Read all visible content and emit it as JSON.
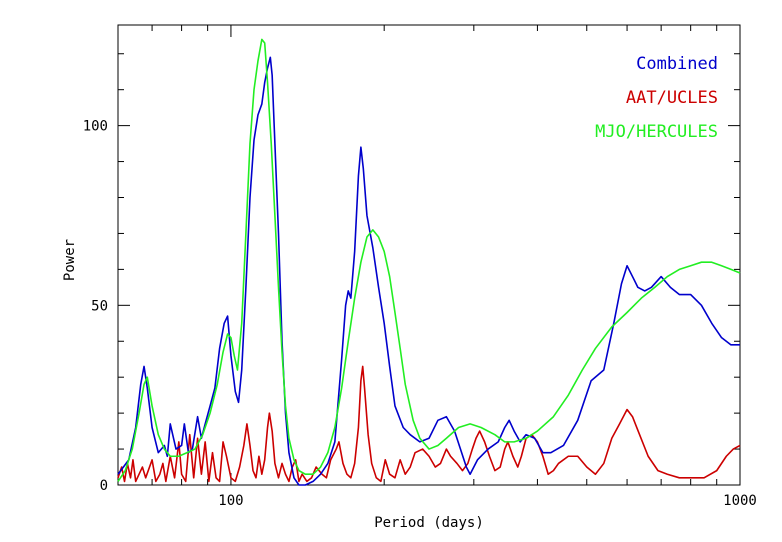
{
  "chart_data": {
    "type": "line",
    "xlabel": "Period (days)",
    "ylabel": "Power",
    "xscale": "log",
    "xlim": [
      60,
      1000
    ],
    "ylim": [
      0,
      128
    ],
    "x_tick_labels": [
      "100",
      "1000"
    ],
    "y_tick_labels": [
      "0",
      "50",
      "100"
    ],
    "legend_position": "top-right",
    "grid": false,
    "series": [
      {
        "name": "Combined",
        "color": "#0000cc",
        "points": [
          [
            60,
            3
          ],
          [
            63,
            7
          ],
          [
            65,
            16
          ],
          [
            66.5,
            28
          ],
          [
            67.5,
            33
          ],
          [
            68.5,
            27
          ],
          [
            70,
            16
          ],
          [
            72,
            9
          ],
          [
            74,
            11
          ],
          [
            75,
            8
          ],
          [
            76,
            17
          ],
          [
            78,
            10
          ],
          [
            80,
            11
          ],
          [
            81,
            17
          ],
          [
            82.5,
            9
          ],
          [
            84,
            10
          ],
          [
            86,
            19
          ],
          [
            87.5,
            13
          ],
          [
            89,
            17
          ],
          [
            91,
            22
          ],
          [
            93,
            27
          ],
          [
            95,
            38
          ],
          [
            97,
            45
          ],
          [
            98.5,
            47
          ],
          [
            100,
            36
          ],
          [
            102,
            26
          ],
          [
            103.5,
            23
          ],
          [
            105,
            32
          ],
          [
            107,
            55
          ],
          [
            109,
            80
          ],
          [
            111,
            96
          ],
          [
            113,
            103
          ],
          [
            115,
            106
          ],
          [
            116.5,
            112
          ],
          [
            118,
            116
          ],
          [
            119.5,
            119
          ],
          [
            120.5,
            114
          ],
          [
            122,
            95
          ],
          [
            124,
            70
          ],
          [
            126,
            40
          ],
          [
            128,
            20
          ],
          [
            130,
            9
          ],
          [
            133,
            2
          ],
          [
            136,
            0
          ],
          [
            140,
            0
          ],
          [
            145,
            1
          ],
          [
            150,
            3
          ],
          [
            155,
            6
          ],
          [
            160,
            12
          ],
          [
            165,
            35
          ],
          [
            168,
            50
          ],
          [
            170,
            54
          ],
          [
            172,
            52
          ],
          [
            175,
            65
          ],
          [
            178,
            86
          ],
          [
            180,
            94
          ],
          [
            182,
            88
          ],
          [
            185,
            75
          ],
          [
            190,
            66
          ],
          [
            195,
            55
          ],
          [
            200,
            45
          ],
          [
            205,
            33
          ],
          [
            210,
            22
          ],
          [
            218,
            16
          ],
          [
            225,
            14
          ],
          [
            235,
            12
          ],
          [
            245,
            13
          ],
          [
            255,
            18
          ],
          [
            265,
            19
          ],
          [
            275,
            15
          ],
          [
            290,
            5
          ],
          [
            295,
            3
          ],
          [
            305,
            7
          ],
          [
            320,
            10
          ],
          [
            335,
            12
          ],
          [
            345,
            16
          ],
          [
            352,
            18
          ],
          [
            360,
            15
          ],
          [
            370,
            12
          ],
          [
            380,
            14
          ],
          [
            395,
            13
          ],
          [
            410,
            9
          ],
          [
            425,
            9
          ],
          [
            450,
            11
          ],
          [
            480,
            18
          ],
          [
            510,
            29
          ],
          [
            540,
            32
          ],
          [
            565,
            45
          ],
          [
            585,
            56
          ],
          [
            600,
            61
          ],
          [
            615,
            58
          ],
          [
            630,
            55
          ],
          [
            650,
            54
          ],
          [
            670,
            55
          ],
          [
            700,
            58
          ],
          [
            730,
            55
          ],
          [
            760,
            53
          ],
          [
            800,
            53
          ],
          [
            840,
            50
          ],
          [
            880,
            45
          ],
          [
            920,
            41
          ],
          [
            960,
            39
          ],
          [
            1000,
            39
          ]
        ]
      },
      {
        "name": "AAT/UCLES",
        "color": "#cc0000",
        "points": [
          [
            60,
            2
          ],
          [
            61,
            5
          ],
          [
            61.8,
            1
          ],
          [
            62.6,
            6
          ],
          [
            63.5,
            2
          ],
          [
            64.2,
            7
          ],
          [
            65,
            1
          ],
          [
            66,
            3
          ],
          [
            67,
            5
          ],
          [
            68,
            2
          ],
          [
            70,
            7
          ],
          [
            71.2,
            1
          ],
          [
            72.5,
            3
          ],
          [
            73.5,
            6
          ],
          [
            74.5,
            1
          ],
          [
            76,
            8
          ],
          [
            77.5,
            2
          ],
          [
            79,
            12
          ],
          [
            80,
            3
          ],
          [
            81.5,
            1
          ],
          [
            83,
            14
          ],
          [
            84.5,
            2
          ],
          [
            86,
            13
          ],
          [
            87.5,
            3
          ],
          [
            89,
            12
          ],
          [
            90.5,
            1
          ],
          [
            92,
            9
          ],
          [
            93.5,
            2
          ],
          [
            95,
            1
          ],
          [
            96.5,
            12
          ],
          [
            98,
            8
          ],
          [
            100,
            2
          ],
          [
            102,
            1
          ],
          [
            104,
            5
          ],
          [
            106,
            11
          ],
          [
            107.5,
            17
          ],
          [
            109,
            11
          ],
          [
            110.5,
            4
          ],
          [
            112,
            2
          ],
          [
            113.5,
            8
          ],
          [
            115,
            3
          ],
          [
            116.5,
            7
          ],
          [
            118,
            16
          ],
          [
            119,
            20
          ],
          [
            120.5,
            15
          ],
          [
            122,
            6
          ],
          [
            124,
            2
          ],
          [
            126,
            6
          ],
          [
            128,
            3
          ],
          [
            130,
            1
          ],
          [
            132,
            5
          ],
          [
            134,
            7
          ],
          [
            136,
            1
          ],
          [
            138,
            3
          ],
          [
            141,
            1
          ],
          [
            144,
            2
          ],
          [
            147,
            5
          ],
          [
            151,
            3
          ],
          [
            154,
            2
          ],
          [
            157,
            7
          ],
          [
            161,
            10
          ],
          [
            163,
            12
          ],
          [
            166,
            6
          ],
          [
            169,
            3
          ],
          [
            172,
            2
          ],
          [
            175,
            6
          ],
          [
            178,
            16
          ],
          [
            180,
            29
          ],
          [
            181.5,
            33
          ],
          [
            183,
            27
          ],
          [
            186,
            14
          ],
          [
            189,
            6
          ],
          [
            193,
            2
          ],
          [
            197,
            1
          ],
          [
            201,
            7
          ],
          [
            205,
            3
          ],
          [
            210,
            2
          ],
          [
            215,
            7
          ],
          [
            220,
            3
          ],
          [
            225,
            5
          ],
          [
            230,
            9
          ],
          [
            238,
            10
          ],
          [
            245,
            8
          ],
          [
            252,
            5
          ],
          [
            258,
            6
          ],
          [
            265,
            10
          ],
          [
            270,
            8
          ],
          [
            278,
            6
          ],
          [
            285,
            4
          ],
          [
            292,
            6
          ],
          [
            298,
            10
          ],
          [
            303,
            13
          ],
          [
            308,
            15
          ],
          [
            315,
            12
          ],
          [
            322,
            8
          ],
          [
            330,
            4
          ],
          [
            338,
            5
          ],
          [
            345,
            10
          ],
          [
            350,
            12
          ],
          [
            358,
            8
          ],
          [
            366,
            5
          ],
          [
            372,
            8
          ],
          [
            380,
            13
          ],
          [
            390,
            14
          ],
          [
            400,
            12
          ],
          [
            410,
            8
          ],
          [
            420,
            3
          ],
          [
            430,
            4
          ],
          [
            440,
            6
          ],
          [
            460,
            8
          ],
          [
            480,
            8
          ],
          [
            500,
            5
          ],
          [
            520,
            3
          ],
          [
            540,
            6
          ],
          [
            560,
            13
          ],
          [
            580,
            17
          ],
          [
            600,
            21
          ],
          [
            615,
            19
          ],
          [
            635,
            14
          ],
          [
            660,
            8
          ],
          [
            690,
            4
          ],
          [
            720,
            3
          ],
          [
            760,
            2
          ],
          [
            800,
            2
          ],
          [
            850,
            2
          ],
          [
            900,
            4
          ],
          [
            940,
            8
          ],
          [
            970,
            10
          ],
          [
            1000,
            11
          ]
        ]
      },
      {
        "name": "MJO/HERCULES",
        "color": "#22ee22",
        "points": [
          [
            60,
            1
          ],
          [
            62,
            4
          ],
          [
            64,
            10
          ],
          [
            66,
            20
          ],
          [
            67.5,
            28
          ],
          [
            68.5,
            30
          ],
          [
            70,
            22
          ],
          [
            72,
            14
          ],
          [
            74,
            10
          ],
          [
            76,
            8
          ],
          [
            79,
            8
          ],
          [
            82,
            9
          ],
          [
            85,
            10
          ],
          [
            88,
            14
          ],
          [
            91,
            20
          ],
          [
            94,
            28
          ],
          [
            96.5,
            37
          ],
          [
            98.5,
            42
          ],
          [
            100,
            41
          ],
          [
            101.5,
            36
          ],
          [
            103,
            32
          ],
          [
            105,
            45
          ],
          [
            107,
            70
          ],
          [
            109,
            95
          ],
          [
            111,
            110
          ],
          [
            113,
            118
          ],
          [
            115,
            124
          ],
          [
            116.5,
            123
          ],
          [
            118,
            112
          ],
          [
            120,
            95
          ],
          [
            122,
            75
          ],
          [
            124,
            55
          ],
          [
            126,
            37
          ],
          [
            128,
            22
          ],
          [
            130,
            13
          ],
          [
            133,
            7
          ],
          [
            136,
            4
          ],
          [
            140,
            3
          ],
          [
            145,
            3
          ],
          [
            150,
            5
          ],
          [
            155,
            9
          ],
          [
            160,
            16
          ],
          [
            165,
            27
          ],
          [
            170,
            40
          ],
          [
            175,
            52
          ],
          [
            180,
            62
          ],
          [
            185,
            69
          ],
          [
            190,
            71
          ],
          [
            195,
            69
          ],
          [
            200,
            65
          ],
          [
            205,
            58
          ],
          [
            210,
            48
          ],
          [
            215,
            38
          ],
          [
            220,
            28
          ],
          [
            228,
            18
          ],
          [
            235,
            13
          ],
          [
            245,
            10
          ],
          [
            255,
            11
          ],
          [
            265,
            13
          ],
          [
            280,
            16
          ],
          [
            295,
            17
          ],
          [
            310,
            16
          ],
          [
            330,
            14
          ],
          [
            345,
            12
          ],
          [
            360,
            12
          ],
          [
            380,
            13
          ],
          [
            400,
            15
          ],
          [
            430,
            19
          ],
          [
            460,
            25
          ],
          [
            490,
            32
          ],
          [
            520,
            38
          ],
          [
            560,
            44
          ],
          [
            600,
            48
          ],
          [
            640,
            52
          ],
          [
            680,
            55
          ],
          [
            720,
            58
          ],
          [
            760,
            60
          ],
          [
            800,
            61
          ],
          [
            840,
            62
          ],
          [
            880,
            62
          ],
          [
            920,
            61
          ],
          [
            960,
            60
          ],
          [
            1000,
            59
          ]
        ]
      }
    ]
  }
}
